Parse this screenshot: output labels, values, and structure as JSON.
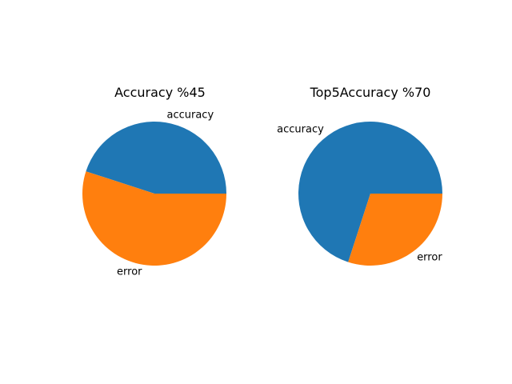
{
  "chart_data": [
    {
      "type": "pie",
      "title": "Accuracy %45",
      "labels": [
        "accuracy",
        "error"
      ],
      "values": [
        45,
        55
      ],
      "colors": [
        "#1f77b4",
        "#ff7f0e"
      ],
      "start_angle": 0,
      "direction": "counterclockwise"
    },
    {
      "type": "pie",
      "title": "Top5Accuracy %70",
      "labels": [
        "accuracy",
        "error"
      ],
      "values": [
        70,
        30
      ],
      "colors": [
        "#1f77b4",
        "#ff7f0e"
      ],
      "start_angle": 0,
      "direction": "counterclockwise"
    }
  ]
}
